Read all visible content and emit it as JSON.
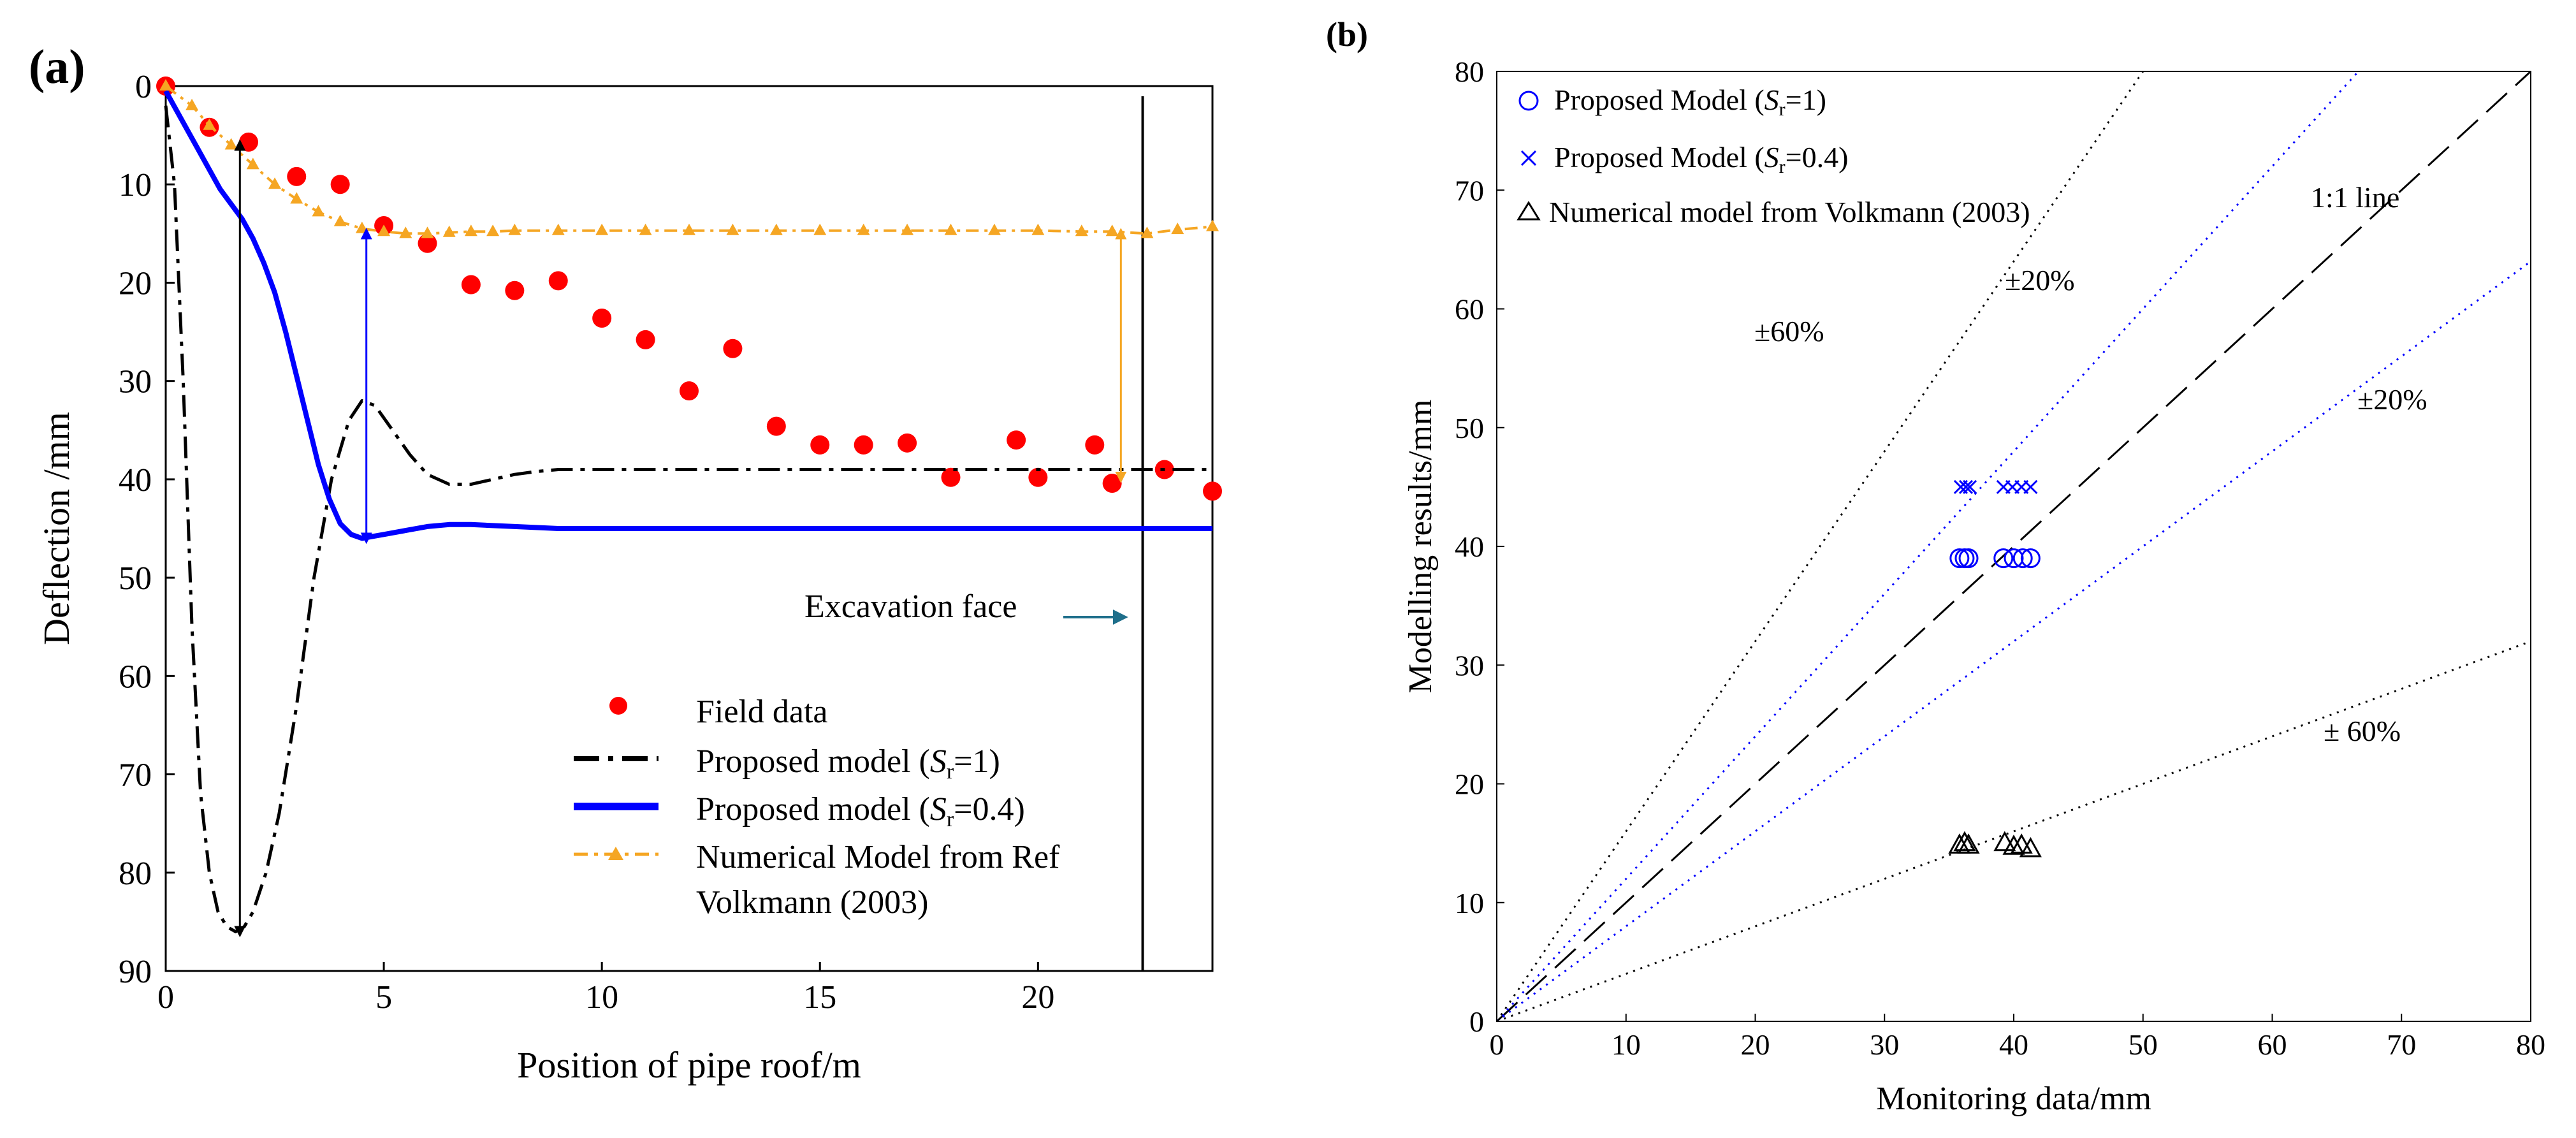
{
  "chart_data": [
    {
      "panel_label": "(a)",
      "type": "line",
      "xlabel": "Position of pipe roof/m",
      "ylabel": "Deflection /mm",
      "xlim": [
        0,
        24
      ],
      "ylim": [
        0,
        90
      ],
      "y_inverted": true,
      "x_ticks": [
        0,
        5,
        10,
        15,
        20
      ],
      "y_ticks": [
        0,
        10,
        20,
        30,
        40,
        50,
        60,
        70,
        80,
        90
      ],
      "grid": false,
      "legend_position": "bottom-right",
      "series": [
        {
          "name": "Field data",
          "kind": "scatter",
          "color": "#ff0000",
          "x": [
            0,
            1,
            1.9,
            3,
            4,
            5,
            6,
            7,
            8,
            9,
            10,
            11,
            12,
            13,
            14,
            15,
            16,
            17,
            18,
            19.5,
            20,
            21.3,
            21.7,
            22.9,
            24
          ],
          "y": [
            0,
            4.2,
            5.7,
            9.2,
            10,
            14.2,
            16,
            20.2,
            20.8,
            19.8,
            23.6,
            25.8,
            31,
            26.7,
            34.6,
            36.5,
            36.5,
            36.3,
            39.8,
            36,
            39.8,
            36.5,
            40.4,
            39,
            41.2
          ]
        },
        {
          "name": "Proposed model (Sr=1)",
          "kind": "line",
          "style": "dash-dot",
          "color": "#000000",
          "x": [
            0,
            0.2,
            0.4,
            0.6,
            0.8,
            1.0,
            1.2,
            1.4,
            1.6,
            1.8,
            2.0,
            2.3,
            2.6,
            3.0,
            3.4,
            3.8,
            4.2,
            4.5,
            4.8,
            5.2,
            5.6,
            6.0,
            6.5,
            7.0,
            7.5,
            8.0,
            8.5,
            9.0,
            10,
            11,
            12,
            14,
            16,
            18,
            20,
            22,
            24
          ],
          "y": [
            2,
            10,
            30,
            55,
            72,
            80,
            84,
            85.5,
            86,
            85.5,
            84,
            80,
            74,
            63,
            50,
            40,
            34,
            32,
            32.5,
            35,
            37.5,
            39.5,
            40.5,
            40.5,
            40,
            39.5,
            39.2,
            39,
            39,
            39,
            39,
            39,
            39,
            39,
            39,
            39,
            39
          ]
        },
        {
          "name": "Proposed model (Sr=0.4)",
          "kind": "line",
          "style": "solid",
          "color": "#0000ff",
          "x": [
            0,
            0.25,
            0.5,
            0.75,
            1.0,
            1.25,
            1.5,
            1.75,
            2.0,
            2.25,
            2.5,
            2.75,
            3.0,
            3.25,
            3.5,
            3.75,
            4.0,
            4.25,
            4.5,
            4.75,
            5.0,
            5.5,
            6.0,
            6.5,
            7.0,
            7.5,
            8.0,
            9.0,
            10,
            12,
            14,
            16,
            18,
            20,
            22,
            24
          ],
          "y": [
            0.5,
            2.5,
            4.5,
            6.5,
            8.5,
            10.5,
            12,
            13.5,
            15.5,
            18,
            21,
            25,
            29.5,
            34,
            38.5,
            42,
            44.5,
            45.6,
            46,
            45.8,
            45.6,
            45.2,
            44.8,
            44.6,
            44.6,
            44.7,
            44.8,
            45,
            45,
            45,
            45,
            45,
            45,
            45,
            45,
            45
          ]
        },
        {
          "name": "Numerical Model from Ref Volkmann (2003)",
          "kind": "line-marker",
          "style": "dash-dot",
          "color": "#f5a623",
          "x": [
            0,
            0.6,
            1.0,
            1.5,
            2.0,
            2.5,
            3.0,
            3.5,
            4.0,
            4.5,
            5.0,
            5.5,
            6.0,
            6.5,
            7.0,
            7.5,
            8.0,
            9.0,
            10,
            11,
            12,
            13,
            14,
            15,
            16,
            17,
            18,
            19,
            20,
            21,
            21.7,
            22.5,
            23.2,
            24
          ],
          "y": [
            0,
            2,
            4,
            6,
            8,
            10,
            11.5,
            12.8,
            13.8,
            14.5,
            14.8,
            15,
            15,
            14.9,
            14.8,
            14.8,
            14.7,
            14.7,
            14.7,
            14.7,
            14.7,
            14.7,
            14.7,
            14.7,
            14.7,
            14.7,
            14.7,
            14.7,
            14.7,
            14.8,
            14.8,
            15,
            14.6,
            14.3
          ]
        }
      ],
      "arrows": [
        {
          "x": 1.7,
          "y1": 6,
          "y2": 86,
          "color": "#000000"
        },
        {
          "x": 4.6,
          "y1": 15,
          "y2": 46,
          "color": "#0000ff"
        },
        {
          "x": 21.9,
          "y1": 15,
          "y2": 39.8,
          "color": "#f5a623"
        }
      ],
      "excavation_face_x": 22.4,
      "annotations": {
        "excavation_face": "Excavation face"
      }
    },
    {
      "panel_label": "(b)",
      "type": "scatter",
      "xlabel": "Monitoring data/mm",
      "ylabel": "Modelling results/mm",
      "xlim": [
        0,
        80
      ],
      "ylim": [
        0,
        80
      ],
      "x_ticks": [
        0,
        10,
        20,
        30,
        40,
        50,
        60,
        70,
        80
      ],
      "y_ticks": [
        0,
        10,
        20,
        30,
        40,
        50,
        60,
        70,
        80
      ],
      "grid": false,
      "legend_position": "top-left",
      "reference_lines": [
        {
          "label": "1:1 line",
          "slope": 1.0,
          "style": "long-dash",
          "color": "#000000"
        },
        {
          "label": "±20%",
          "slope": 1.2,
          "style": "dotted",
          "color": "#0000ff"
        },
        {
          "label": "±20%",
          "slope": 0.8,
          "style": "dotted",
          "color": "#0000ff"
        },
        {
          "label": "±60%",
          "slope": 1.6,
          "style": "dotted",
          "color": "#000000"
        },
        {
          "label": "± 60%",
          "slope": 0.4,
          "style": "dotted",
          "color": "#000000"
        }
      ],
      "series": [
        {
          "name": "Proposed Model (Sr=1)",
          "marker": "circle",
          "color": "#0000ff",
          "x": [
            35.8,
            36.2,
            36.5,
            39.2,
            40.0,
            40.7,
            41.3
          ],
          "y": [
            39,
            39,
            39,
            39,
            39,
            39,
            39
          ]
        },
        {
          "name": "Proposed Model (Sr=0.4)",
          "marker": "x",
          "color": "#0000ff",
          "x": [
            35.9,
            36.3,
            36.6,
            39.2,
            39.9,
            40.6,
            41.3
          ],
          "y": [
            45,
            45,
            45,
            45,
            45,
            45,
            45
          ]
        },
        {
          "name": "Numerical model from Volkmann (2003)",
          "marker": "triangle",
          "color": "#000000",
          "x": [
            35.8,
            36.2,
            36.5,
            39.3,
            40.0,
            40.6,
            41.3
          ],
          "y": [
            14.8,
            15,
            14.8,
            15,
            14.7,
            14.8,
            14.5
          ]
        }
      ]
    }
  ],
  "legend_a": {
    "field": "Field data",
    "sr1_main": "Proposed model (",
    "sr1_s": "S",
    "sr1_sub": "r",
    "sr1_end": "=1)",
    "sr04_main": "Proposed model (",
    "sr04_s": "S",
    "sr04_sub": "r",
    "sr04_end": "=0.4)",
    "num_line1": "Numerical Model from Ref",
    "num_line2": "Volkmann (2003)"
  },
  "legend_b": {
    "circ_main": "Proposed  Model  (",
    "circ_s": "S",
    "circ_sub": "r",
    "circ_end": "=1)",
    "x_main": "Proposed  Model  (",
    "x_s": "S",
    "x_sub": "r",
    "x_end": "=0.4)",
    "tri": "Numerical model from Volkmann (2003)"
  },
  "labels_b": {
    "one_to_one": "1:1 line",
    "plus20_top": "±20%",
    "plus60_top": "±60%",
    "plus20_right": "±20%",
    "plus60_bottom": "± 60%"
  },
  "colors": {
    "field": "#ff0000",
    "sr1": "#000000",
    "sr04": "#0000ff",
    "numerical": "#f5a623",
    "excavation_arrow": "#1f6f8b"
  }
}
